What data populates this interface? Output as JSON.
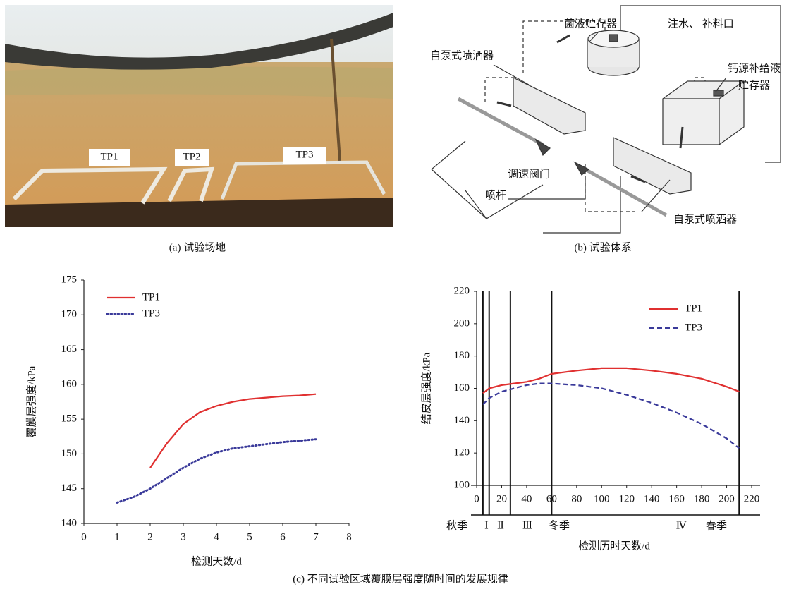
{
  "panel_a": {
    "labels": [
      "TP1",
      "TP2",
      "TP3"
    ],
    "caption": "(a) 试验场地"
  },
  "panel_b": {
    "labels": [
      "菌液贮存器",
      "注水、 补料口",
      "自泵式喷洒器",
      "钙源补给液",
      "贮存器",
      "调速阀门",
      "喷杆",
      "自泵式喷洒器"
    ],
    "caption": "(b) 试验体系"
  },
  "caption": "(c) 不同试验区域覆膜层强度随时间的发展规律",
  "chart_data": [
    {
      "type": "line",
      "xlabel": "检测天数/d",
      "ylabel": "覆膜层强度/kPa",
      "xlim": [
        0,
        8
      ],
      "ylim": [
        140,
        175
      ],
      "xticks": [
        0,
        1,
        2,
        3,
        4,
        5,
        6,
        7,
        8
      ],
      "yticks": [
        140,
        145,
        150,
        155,
        160,
        165,
        170,
        175
      ],
      "legend": "upper left",
      "series": [
        {
          "name": "TP1",
          "color": "#e03030",
          "style": "solid",
          "x": [
            2,
            2.5,
            3,
            3.5,
            4,
            4.5,
            5,
            5.5,
            6,
            6.5,
            7
          ],
          "values": [
            148,
            151.5,
            154.3,
            156,
            156.9,
            157.5,
            157.9,
            158.1,
            158.3,
            158.4,
            158.6
          ]
        },
        {
          "name": "TP3",
          "color": "#3a3a9a",
          "style": "dotted",
          "x": [
            1,
            1.5,
            2,
            2.5,
            3,
            3.5,
            4,
            4.5,
            5,
            5.5,
            6,
            6.5,
            7
          ],
          "values": [
            143,
            143.8,
            145,
            146.5,
            148,
            149.3,
            150.2,
            150.8,
            151.1,
            151.4,
            151.7,
            151.9,
            152.1
          ]
        }
      ]
    },
    {
      "type": "line",
      "xlabel": "检测历时天数/d",
      "ylabel": "结皮层强度/kPa",
      "xlim": [
        0,
        220
      ],
      "ylim": [
        100,
        220
      ],
      "xticks": [
        0,
        20,
        40,
        60,
        80,
        100,
        120,
        140,
        160,
        180,
        200,
        220
      ],
      "yticks": [
        100,
        120,
        140,
        160,
        180,
        200,
        220
      ],
      "legend": "upper right",
      "markers": [
        5,
        10,
        27,
        60,
        210
      ],
      "period_labels": [
        "秋季",
        "Ⅰ",
        "Ⅱ",
        "Ⅲ",
        "冬季",
        "Ⅳ",
        "春季"
      ],
      "series": [
        {
          "name": "TP1",
          "color": "#e03030",
          "style": "solid",
          "x": [
            5,
            10,
            20,
            30,
            40,
            50,
            60,
            80,
            100,
            120,
            140,
            160,
            180,
            200,
            210
          ],
          "values": [
            157,
            160,
            162,
            163,
            164,
            166,
            169,
            171,
            172.5,
            172.5,
            171,
            169,
            166,
            161,
            158
          ]
        },
        {
          "name": "TP3",
          "color": "#3a3a9a",
          "style": "dashed",
          "x": [
            5,
            10,
            20,
            30,
            40,
            50,
            60,
            80,
            100,
            120,
            140,
            160,
            180,
            200,
            210
          ],
          "values": [
            150,
            154,
            158,
            160,
            162,
            163,
            163,
            162,
            160,
            156,
            151,
            145,
            138,
            129,
            123
          ]
        }
      ]
    }
  ]
}
